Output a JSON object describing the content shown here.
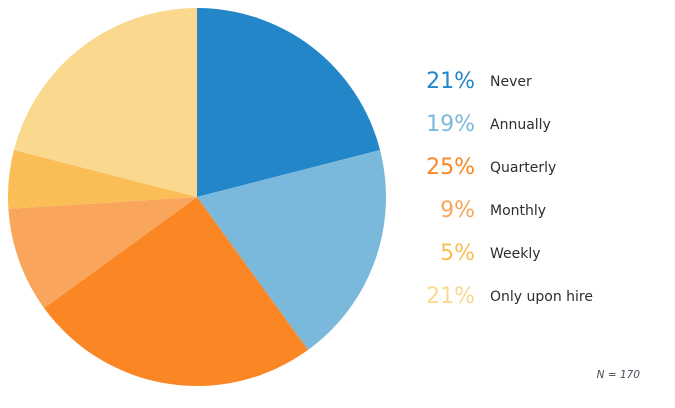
{
  "chart_data": {
    "type": "pie",
    "title": "",
    "labels": [
      "Never",
      "Annually",
      "Quarterly",
      "Monthly",
      "Weekly",
      "Only upon hire"
    ],
    "values": [
      21,
      19,
      25,
      9,
      5,
      21
    ],
    "unit": "%",
    "colors": [
      "#2386c8",
      "#7bb9dc",
      "#fa8723",
      "#f9a55c",
      "#fbbd55",
      "#fad98f"
    ],
    "start_angle_deg": 0,
    "direction": "clockwise",
    "legend_position": "right",
    "label_text_color": "#2d2d2d",
    "annotations": [
      "N = 170"
    ]
  }
}
